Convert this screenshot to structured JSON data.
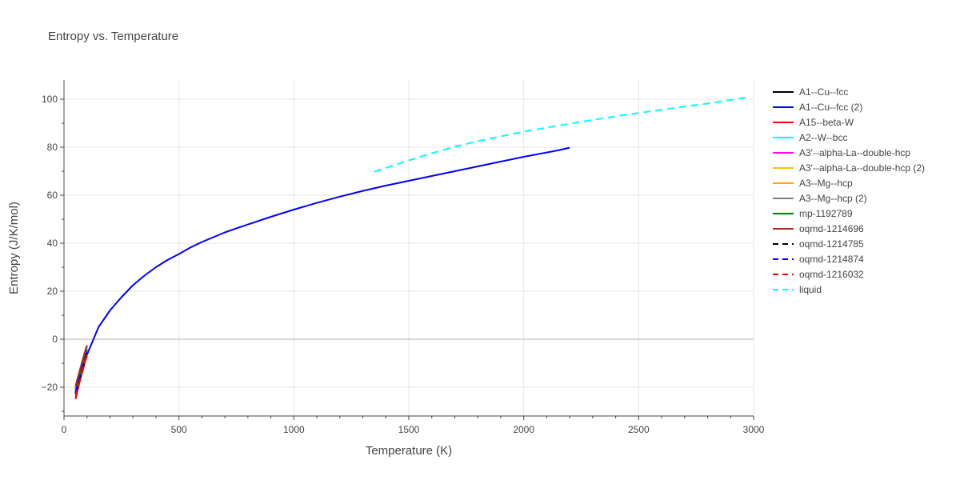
{
  "chart_data": {
    "type": "line",
    "title": "Entropy vs. Temperature",
    "xlabel": "Temperature (K)",
    "ylabel": "Entropy (J/K/mol)",
    "xlim": [
      0,
      3000
    ],
    "ylim": [
      -32,
      108
    ],
    "xticks": [
      0,
      500,
      1000,
      1500,
      2000,
      2500,
      3000
    ],
    "yticks": [
      -20,
      0,
      20,
      40,
      60,
      80,
      100
    ],
    "xtick_labels": [
      "0",
      "500",
      "1000",
      "1500",
      "2000",
      "2500",
      "3000"
    ],
    "ytick_labels": [
      "−20",
      "0",
      "20",
      "40",
      "60",
      "80",
      "100"
    ],
    "grid": true,
    "legend_position": "right",
    "series": [
      {
        "name": "A1--Cu--fcc",
        "color": "#000000",
        "dash": "solid",
        "x": [
          50,
          60,
          70,
          80,
          90,
          100
        ],
        "y": [
          -22,
          -19,
          -15.5,
          -12,
          -8.5,
          -5.5
        ]
      },
      {
        "name": "A1--Cu--fcc (2)",
        "color": "#0000ff",
        "dash": "solid",
        "x": [
          100,
          150,
          200,
          250,
          300,
          350,
          400,
          450,
          500,
          550,
          600,
          700,
          750,
          800,
          900,
          1000,
          1100,
          1200,
          1300,
          1400,
          1500,
          1600,
          1700,
          1800,
          1900,
          2000,
          2100,
          2150,
          2200
        ],
        "y": [
          -6.5,
          5,
          12,
          17.5,
          22.5,
          26.5,
          30,
          33,
          35.5,
          38.2,
          40.5,
          44.5,
          46.2,
          47.8,
          51,
          54,
          56.8,
          59.4,
          61.8,
          64,
          66,
          68,
          70,
          72,
          74,
          76,
          77.8,
          78.7,
          79.8
        ]
      },
      {
        "name": "A15--beta-W",
        "color": "#ff0000",
        "dash": "solid",
        "x": [
          50,
          60,
          70,
          80,
          90,
          100
        ],
        "y": [
          -25,
          -21,
          -17,
          -13.5,
          -10,
          -7
        ]
      },
      {
        "name": "A2--W--bcc",
        "color": "#00ffff",
        "dash": "solid",
        "x": [
          50,
          60,
          70,
          80,
          90,
          100
        ],
        "y": [
          -21.5,
          -18.5,
          -15,
          -11.5,
          -8,
          -5
        ]
      },
      {
        "name": "A3'--alpha-La--double-hcp",
        "color": "#ff00ff",
        "dash": "solid",
        "x": [
          50,
          60,
          70,
          80,
          90,
          100
        ],
        "y": [
          -21,
          -18,
          -14.5,
          -11,
          -7.5,
          -4
        ]
      },
      {
        "name": "A3'--alpha-La--double-hcp (2)",
        "color": "#ffbb00",
        "dash": "solid",
        "x": [
          50,
          60,
          70,
          80,
          90,
          100
        ],
        "y": [
          -20.5,
          -17.5,
          -14,
          -10.5,
          -7,
          -3.5
        ]
      },
      {
        "name": "A3--Mg--hcp",
        "color": "#ffa500",
        "dash": "solid",
        "x": [
          50,
          60,
          70,
          80,
          90,
          100
        ],
        "y": [
          -20,
          -17,
          -13.5,
          -10,
          -6.5,
          -3.5
        ]
      },
      {
        "name": "A3--Mg--hcp (2)",
        "color": "#808080",
        "dash": "solid",
        "x": [
          50,
          60,
          70,
          80,
          90,
          100
        ],
        "y": [
          -20.5,
          -17,
          -13.5,
          -10,
          -6.5,
          -3
        ]
      },
      {
        "name": "mp-1192789",
        "color": "#008000",
        "dash": "solid",
        "x": [
          50,
          60,
          70,
          80,
          90,
          100
        ],
        "y": [
          -22,
          -18.5,
          -15,
          -11.5,
          -8,
          -4.5
        ]
      },
      {
        "name": "oqmd-1214696",
        "color": "#a52a2a",
        "dash": "solid",
        "x": [
          50,
          60,
          70,
          80,
          90,
          100
        ],
        "y": [
          -19.5,
          -16,
          -12.5,
          -9,
          -5.5,
          -2.5
        ]
      },
      {
        "name": "oqmd-1214785",
        "color": "#000000",
        "dash": "dash",
        "x": [
          50,
          60,
          70,
          80,
          90,
          100
        ],
        "y": [
          -23,
          -19.5,
          -16,
          -12.5,
          -9,
          -6
        ]
      },
      {
        "name": "oqmd-1214874",
        "color": "#0000ff",
        "dash": "dash",
        "x": [
          50,
          60,
          70,
          80,
          90,
          100
        ],
        "y": [
          -22.5,
          -19,
          -15.5,
          -12,
          -8.5,
          -5.5
        ]
      },
      {
        "name": "oqmd-1216032",
        "color": "#ff0000",
        "dash": "dash",
        "x": [
          50,
          60,
          70,
          80,
          90,
          100
        ],
        "y": [
          -24,
          -20.5,
          -17,
          -13,
          -9.5,
          -6.5
        ]
      },
      {
        "name": "liquid",
        "color": "#00ffff",
        "dash": "dash",
        "x": [
          1350,
          1500,
          1600,
          1700,
          1800,
          1900,
          2000,
          2200,
          2400,
          2600,
          2800,
          2980
        ],
        "y": [
          69.8,
          74.5,
          77.5,
          80.2,
          82.5,
          84.5,
          86.5,
          89.8,
          92.9,
          95.6,
          98.2,
          100.9
        ]
      }
    ]
  }
}
